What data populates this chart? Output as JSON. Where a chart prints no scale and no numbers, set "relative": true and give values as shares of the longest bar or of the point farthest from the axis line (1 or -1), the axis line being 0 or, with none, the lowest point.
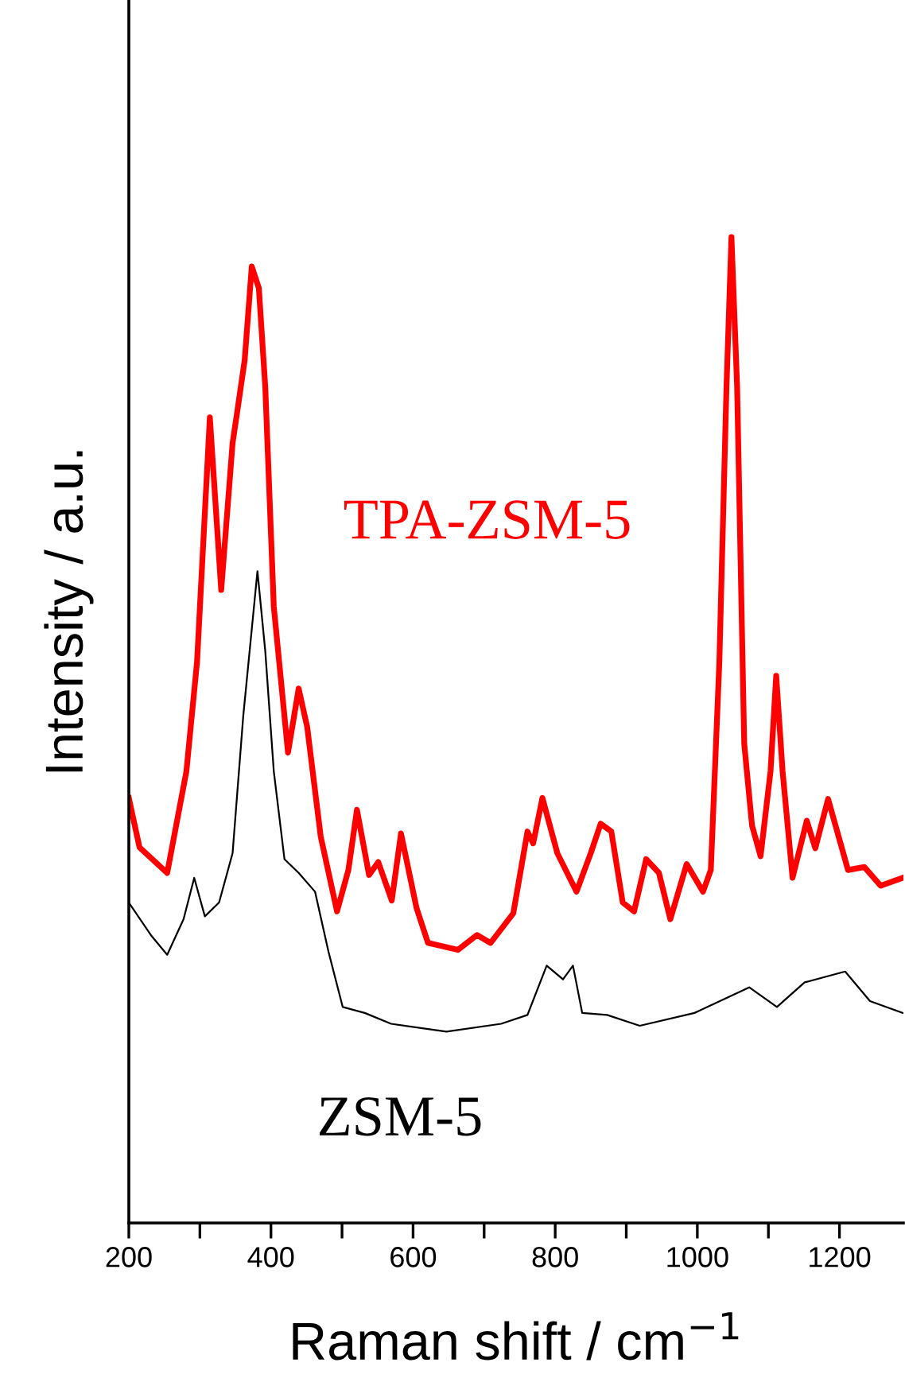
{
  "chart_data": {
    "type": "line",
    "relative": true,
    "xlabel": "Raman shift / cm$^{−1}$",
    "ylabel": "Intensity / a.u.",
    "xlim": [
      200,
      1290
    ],
    "xticks": [
      200,
      {
        "value": 300,
        "label": null
      },
      400,
      {
        "value": 500,
        "label": null
      },
      600,
      {
        "value": 700,
        "label": null
      },
      800,
      {
        "value": 900,
        "label": null
      },
      1000,
      {
        "value": 1100,
        "label": null
      },
      1200
    ],
    "tick_labels": "x",
    "grid": false,
    "legend": false,
    "marker": "none",
    "line_style": "solid",
    "series": [
      {
        "name": "TPA-ZSM-5",
        "color": "#ff0000",
        "x": [
          200,
          215,
          254,
          281,
          296,
          314,
          330,
          346,
          353,
          363,
          373,
          383,
          392,
          404,
          424,
          439,
          451,
          470,
          493,
          509,
          521,
          538,
          551,
          570,
          583,
          605,
          621,
          663,
          690,
          709,
          741,
          761,
          769,
          782,
          803,
          830,
          850,
          864,
          879,
          895,
          911,
          928,
          946,
          962,
          985,
          1008,
          1019,
          1031,
          1041,
          1048,
          1056,
          1066,
          1077,
          1089,
          1103,
          1111,
          1120,
          1134,
          1154,
          1166,
          1184,
          1212,
          1235,
          1258,
          1289
        ],
        "values": [
          0.431,
          0.381,
          0.355,
          0.458,
          0.569,
          0.817,
          0.642,
          0.791,
          0.825,
          0.875,
          0.97,
          0.948,
          0.848,
          0.625,
          0.477,
          0.542,
          0.503,
          0.392,
          0.316,
          0.358,
          0.419,
          0.353,
          0.366,
          0.327,
          0.395,
          0.319,
          0.284,
          0.277,
          0.292,
          0.284,
          0.314,
          0.397,
          0.385,
          0.431,
          0.375,
          0.336,
          0.375,
          0.405,
          0.397,
          0.325,
          0.316,
          0.369,
          0.355,
          0.308,
          0.364,
          0.336,
          0.358,
          0.569,
          0.847,
          1.0,
          0.848,
          0.486,
          0.403,
          0.372,
          0.458,
          0.555,
          0.458,
          0.35,
          0.408,
          0.38,
          0.43,
          0.358,
          0.361,
          0.342,
          0.35
        ]
      },
      {
        "name": "ZSM-5",
        "color": "#000000",
        "x": [
          200,
          231,
          254,
          277,
          292,
          307,
          327,
          346,
          361,
          381,
          392,
          404,
          419,
          439,
          462,
          481,
          501,
          532,
          569,
          647,
          724,
          761,
          788,
          811,
          825,
          838,
          873,
          919,
          996,
          1073,
          1112,
          1151,
          1208,
          1243,
          1289
        ],
        "values": [
          0.325,
          0.292,
          0.272,
          0.308,
          0.35,
          0.311,
          0.325,
          0.375,
          0.514,
          0.661,
          0.58,
          0.458,
          0.369,
          0.355,
          0.336,
          0.275,
          0.219,
          0.213,
          0.202,
          0.194,
          0.202,
          0.211,
          0.261,
          0.247,
          0.261,
          0.213,
          0.211,
          0.2,
          0.213,
          0.239,
          0.219,
          0.244,
          0.255,
          0.225,
          0.213
        ]
      }
    ]
  }
}
